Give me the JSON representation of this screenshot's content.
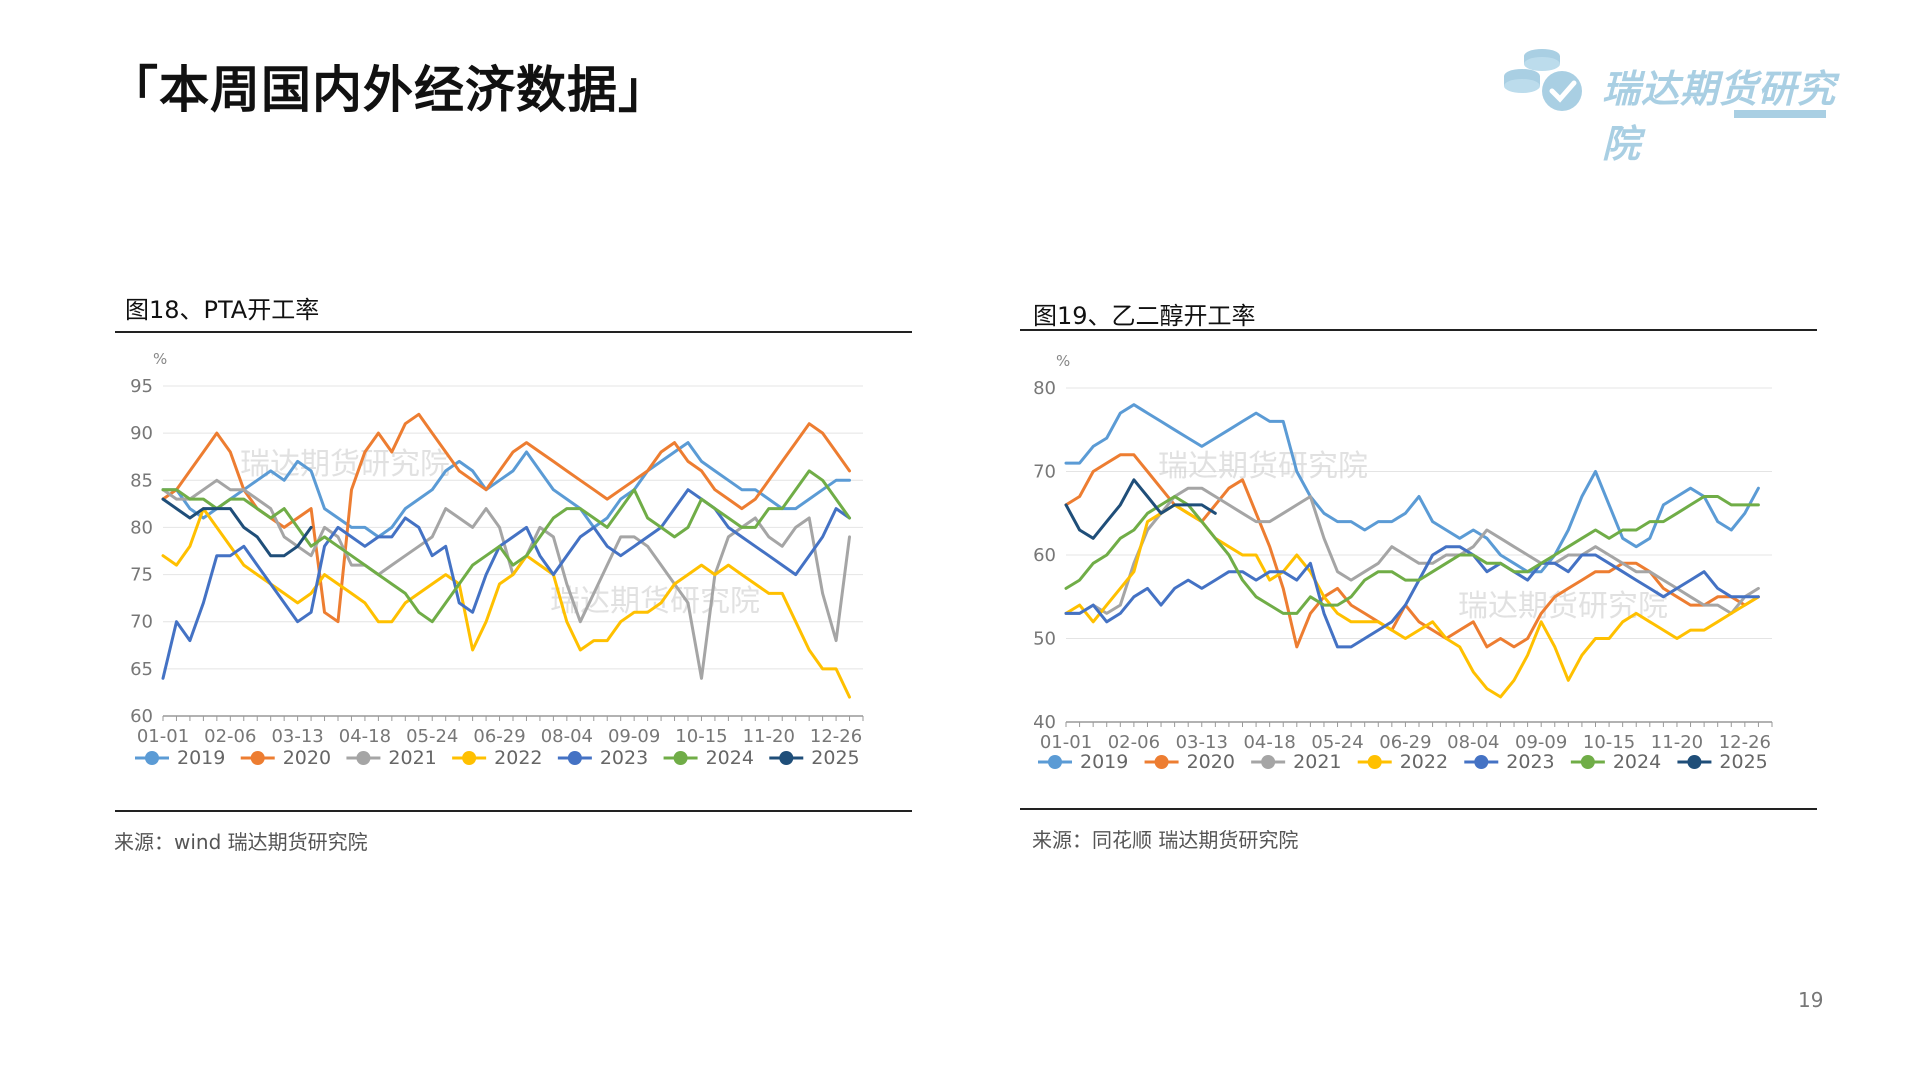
{
  "page": {
    "title": "「本周国内外经济数据」",
    "page_number": "19"
  },
  "logo": {
    "text": "瑞达期货研究院"
  },
  "watermark": "瑞达期货研究院",
  "charts": [
    {
      "caption": "图18、PTA开工率",
      "source": "来源：wind    瑞达期货研究院"
    },
    {
      "caption": "图19、乙二醇开工率",
      "source": "来源：同花顺    瑞达期货研究院"
    }
  ],
  "chart_data": [
    {
      "type": "line",
      "title": "图18、PTA开工率",
      "ylabel": "%",
      "ylim": [
        60,
        95
      ],
      "yticks": [
        60,
        65,
        70,
        75,
        80,
        85,
        90,
        95
      ],
      "xlim": [
        0,
        52
      ],
      "xticks": [
        {
          "x": 0,
          "label": "01-01"
        },
        {
          "x": 5,
          "label": "02-06"
        },
        {
          "x": 10,
          "label": "03-13"
        },
        {
          "x": 15,
          "label": "04-18"
        },
        {
          "x": 20,
          "label": "05-24"
        },
        {
          "x": 25,
          "label": "06-29"
        },
        {
          "x": 30,
          "label": "08-04"
        },
        {
          "x": 35,
          "label": "09-09"
        },
        {
          "x": 40,
          "label": "10-15"
        },
        {
          "x": 45,
          "label": "11-20"
        },
        {
          "x": 50,
          "label": "12-26"
        }
      ],
      "grid": "horizontal",
      "legend": "bottom",
      "series": [
        {
          "name": "2019",
          "color": "#5b9bd5",
          "values": [
            84,
            84,
            82,
            81,
            82,
            83,
            84,
            85,
            86,
            85,
            87,
            86,
            82,
            81,
            80,
            80,
            79,
            80,
            82,
            83,
            84,
            86,
            87,
            86,
            84,
            85,
            86,
            88,
            86,
            84,
            83,
            82,
            80,
            81,
            83,
            84,
            86,
            87,
            88,
            89,
            87,
            86,
            85,
            84,
            84,
            83,
            82,
            82,
            83,
            84,
            85,
            85
          ]
        },
        {
          "name": "2020",
          "color": "#ed7d31",
          "values": [
            83,
            84,
            86,
            88,
            90,
            88,
            84,
            82,
            81,
            80,
            81,
            82,
            71,
            70,
            84,
            88,
            90,
            88,
            91,
            92,
            90,
            88,
            86,
            85,
            84,
            86,
            88,
            89,
            88,
            87,
            86,
            85,
            84,
            83,
            84,
            85,
            86,
            88,
            89,
            87,
            86,
            84,
            83,
            82,
            83,
            85,
            87,
            89,
            91,
            90,
            88,
            86
          ]
        },
        {
          "name": "2021",
          "color": "#a5a5a5",
          "values": [
            84,
            83,
            83,
            84,
            85,
            84,
            84,
            83,
            82,
            79,
            78,
            77,
            80,
            79,
            76,
            76,
            75,
            76,
            77,
            78,
            79,
            82,
            81,
            80,
            82,
            80,
            75,
            77,
            80,
            79,
            74,
            70,
            73,
            76,
            79,
            79,
            78,
            76,
            74,
            72,
            64,
            75,
            79,
            80,
            81,
            79,
            78,
            80,
            81,
            73,
            68,
            79
          ]
        },
        {
          "name": "2022",
          "color": "#ffc000",
          "values": [
            77,
            76,
            78,
            82,
            80,
            78,
            76,
            75,
            74,
            73,
            72,
            73,
            75,
            74,
            73,
            72,
            70,
            70,
            72,
            73,
            74,
            75,
            74,
            67,
            70,
            74,
            75,
            77,
            76,
            75,
            70,
            67,
            68,
            68,
            70,
            71,
            71,
            72,
            74,
            75,
            76,
            75,
            76,
            75,
            74,
            73,
            73,
            70,
            67,
            65,
            65,
            62
          ]
        },
        {
          "name": "2023",
          "color": "#4472c4",
          "values": [
            64,
            70,
            68,
            72,
            77,
            77,
            78,
            76,
            74,
            72,
            70,
            71,
            78,
            80,
            79,
            78,
            79,
            79,
            81,
            80,
            77,
            78,
            72,
            71,
            75,
            78,
            79,
            80,
            77,
            75,
            77,
            79,
            80,
            78,
            77,
            78,
            79,
            80,
            82,
            84,
            83,
            82,
            80,
            79,
            78,
            77,
            76,
            75,
            77,
            79,
            82,
            81
          ]
        },
        {
          "name": "2024",
          "color": "#70ad47",
          "values": [
            84,
            84,
            83,
            83,
            82,
            83,
            83,
            82,
            81,
            82,
            80,
            78,
            79,
            78,
            77,
            76,
            75,
            74,
            73,
            71,
            70,
            72,
            74,
            76,
            77,
            78,
            76,
            77,
            79,
            81,
            82,
            82,
            81,
            80,
            82,
            84,
            81,
            80,
            79,
            80,
            83,
            82,
            81,
            80,
            80,
            82,
            82,
            84,
            86,
            85,
            83,
            81
          ]
        },
        {
          "name": "2025",
          "color": "#1f4e79",
          "values": [
            83,
            82,
            81,
            82,
            82,
            82,
            80,
            79,
            77,
            77,
            78,
            80,
            null,
            null,
            null,
            null,
            null,
            null,
            null,
            null,
            null,
            null,
            null,
            null,
            null,
            null,
            null,
            null,
            null,
            null,
            null,
            null,
            null,
            null,
            null,
            null,
            null,
            null,
            null,
            null,
            null,
            null,
            null,
            null,
            null,
            null,
            null,
            null,
            null,
            null,
            null,
            null
          ]
        }
      ]
    },
    {
      "type": "line",
      "title": "图19、乙二醇开工率",
      "ylabel": "%",
      "ylim": [
        40,
        80
      ],
      "yticks": [
        40,
        50,
        60,
        70,
        80
      ],
      "xlim": [
        0,
        52
      ],
      "xticks": [
        {
          "x": 0,
          "label": "01-01"
        },
        {
          "x": 5,
          "label": "02-06"
        },
        {
          "x": 10,
          "label": "03-13"
        },
        {
          "x": 15,
          "label": "04-18"
        },
        {
          "x": 20,
          "label": "05-24"
        },
        {
          "x": 25,
          "label": "06-29"
        },
        {
          "x": 30,
          "label": "08-04"
        },
        {
          "x": 35,
          "label": "09-09"
        },
        {
          "x": 40,
          "label": "10-15"
        },
        {
          "x": 45,
          "label": "11-20"
        },
        {
          "x": 50,
          "label": "12-26"
        }
      ],
      "grid": "horizontal",
      "legend": "bottom",
      "series": [
        {
          "name": "2019",
          "color": "#5b9bd5",
          "values": [
            71,
            71,
            73,
            74,
            77,
            78,
            77,
            76,
            75,
            74,
            73,
            74,
            75,
            76,
            77,
            76,
            76,
            70,
            67,
            65,
            64,
            64,
            63,
            64,
            64,
            65,
            67,
            64,
            63,
            62,
            63,
            62,
            60,
            59,
            58,
            58,
            60,
            63,
            67,
            70,
            66,
            62,
            61,
            62,
            66,
            67,
            68,
            67,
            64,
            63,
            65,
            68
          ]
        },
        {
          "name": "2020",
          "color": "#ed7d31",
          "values": [
            66,
            67,
            70,
            71,
            72,
            72,
            70,
            68,
            66,
            65,
            64,
            66,
            68,
            69,
            65,
            61,
            56,
            49,
            53,
            55,
            56,
            54,
            53,
            52,
            51,
            54,
            52,
            51,
            50,
            51,
            52,
            49,
            50,
            49,
            50,
            53,
            55,
            56,
            57,
            58,
            58,
            59,
            59,
            58,
            56,
            55,
            54,
            54,
            55,
            55,
            54,
            55
          ]
        },
        {
          "name": "2021",
          "color": "#a5a5a5",
          "values": [
            53,
            53,
            54,
            53,
            54,
            59,
            63,
            65,
            67,
            68,
            68,
            67,
            66,
            65,
            64,
            64,
            65,
            66,
            67,
            62,
            58,
            57,
            58,
            59,
            61,
            60,
            59,
            59,
            60,
            60,
            61,
            63,
            62,
            61,
            60,
            59,
            59,
            60,
            60,
            61,
            60,
            59,
            58,
            58,
            57,
            56,
            55,
            54,
            54,
            53,
            55,
            56
          ]
        },
        {
          "name": "2022",
          "color": "#ffc000",
          "values": [
            53,
            54,
            52,
            54,
            56,
            58,
            64,
            65,
            66,
            65,
            64,
            62,
            61,
            60,
            60,
            57,
            58,
            60,
            58,
            55,
            53,
            52,
            52,
            52,
            51,
            50,
            51,
            52,
            50,
            49,
            46,
            44,
            43,
            45,
            48,
            52,
            49,
            45,
            48,
            50,
            50,
            52,
            53,
            52,
            51,
            50,
            51,
            51,
            52,
            53,
            54,
            55
          ]
        },
        {
          "name": "2023",
          "color": "#4472c4",
          "values": [
            53,
            53,
            54,
            52,
            53,
            55,
            56,
            54,
            56,
            57,
            56,
            57,
            58,
            58,
            57,
            58,
            58,
            57,
            59,
            53,
            49,
            49,
            50,
            51,
            52,
            54,
            57,
            60,
            61,
            61,
            60,
            58,
            59,
            58,
            57,
            59,
            59,
            58,
            60,
            60,
            59,
            58,
            57,
            56,
            55,
            56,
            57,
            58,
            56,
            55,
            55,
            55
          ]
        },
        {
          "name": "2024",
          "color": "#70ad47",
          "values": [
            56,
            57,
            59,
            60,
            62,
            63,
            65,
            66,
            67,
            66,
            64,
            62,
            60,
            57,
            55,
            54,
            53,
            53,
            55,
            54,
            54,
            55,
            57,
            58,
            58,
            57,
            57,
            58,
            59,
            60,
            60,
            59,
            59,
            58,
            58,
            59,
            60,
            61,
            62,
            63,
            62,
            63,
            63,
            64,
            64,
            65,
            66,
            67,
            67,
            66,
            66,
            66
          ]
        },
        {
          "name": "2025",
          "color": "#1f4e79",
          "values": [
            66,
            63,
            62,
            64,
            66,
            69,
            67,
            65,
            66,
            66,
            66,
            65,
            null,
            null,
            null,
            null,
            null,
            null,
            null,
            null,
            null,
            null,
            null,
            null,
            null,
            null,
            null,
            null,
            null,
            null,
            null,
            null,
            null,
            null,
            null,
            null,
            null,
            null,
            null,
            null,
            null,
            null,
            null,
            null,
            null,
            null,
            null,
            null,
            null,
            null,
            null,
            null
          ]
        }
      ]
    }
  ]
}
